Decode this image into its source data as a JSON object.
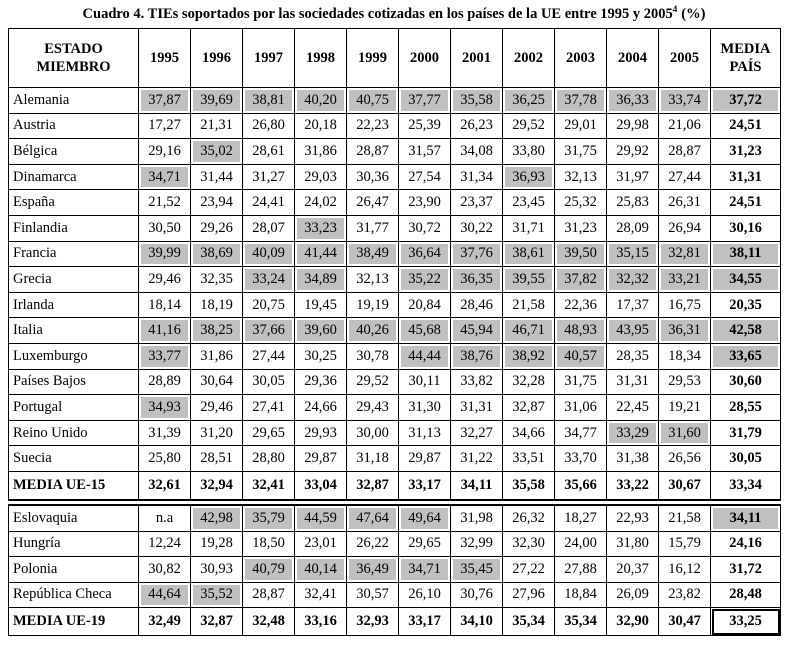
{
  "title": {
    "text": "Cuadro 4. TIEs soportados por las sociedades cotizadas en los países de la UE entre 1995 y 2005",
    "note": "4",
    "unit": "(%)"
  },
  "table": {
    "header": [
      "ESTADO\nMIEMBRO",
      "1995",
      "1996",
      "1997",
      "1998",
      "1999",
      "2000",
      "2001",
      "2002",
      "2003",
      "2004",
      "2005",
      "MEDIA\nPAÍS"
    ],
    "groups": [
      {
        "rows": [
          {
            "name": "Alemania",
            "values": [
              "37,87",
              "39,69",
              "38,81",
              "40,20",
              "40,75",
              "37,77",
              "35,58",
              "36,25",
              "37,78",
              "36,33",
              "33,74",
              "37,72"
            ],
            "shaded": [
              0,
              1,
              2,
              3,
              4,
              5,
              6,
              7,
              8,
              9,
              10,
              11
            ]
          },
          {
            "name": "Austria",
            "values": [
              "17,27",
              "21,31",
              "26,80",
              "20,18",
              "22,23",
              "25,39",
              "26,23",
              "29,52",
              "29,01",
              "29,98",
              "21,06",
              "24,51"
            ],
            "shaded": []
          },
          {
            "name": "Bélgica",
            "values": [
              "29,16",
              "35,02",
              "28,61",
              "31,86",
              "28,87",
              "31,57",
              "34,08",
              "33,80",
              "31,75",
              "29,92",
              "28,87",
              "31,23"
            ],
            "shaded": [
              1
            ]
          },
          {
            "name": "Dinamarca",
            "values": [
              "34,71",
              "31,44",
              "31,27",
              "29,03",
              "30,36",
              "27,54",
              "31,34",
              "36,93",
              "32,13",
              "31,97",
              "27,44",
              "31,31"
            ],
            "shaded": [
              0,
              7
            ]
          },
          {
            "name": "España",
            "values": [
              "21,52",
              "23,94",
              "24,41",
              "24,02",
              "26,47",
              "23,90",
              "23,37",
              "23,45",
              "25,32",
              "25,83",
              "26,31",
              "24,51"
            ],
            "shaded": []
          },
          {
            "name": "Finlandia",
            "values": [
              "30,50",
              "29,26",
              "28,07",
              "33,23",
              "31,77",
              "30,72",
              "30,22",
              "31,71",
              "31,23",
              "28,09",
              "26,94",
              "30,16"
            ],
            "shaded": [
              3
            ]
          },
          {
            "name": "Francia",
            "values": [
              "39,99",
              "38,69",
              "40,09",
              "41,44",
              "38,49",
              "36,64",
              "37,76",
              "38,61",
              "39,50",
              "35,15",
              "32,81",
              "38,11"
            ],
            "shaded": [
              0,
              1,
              2,
              3,
              4,
              5,
              6,
              7,
              8,
              9,
              10,
              11
            ]
          },
          {
            "name": "Grecia",
            "values": [
              "29,46",
              "32,35",
              "33,24",
              "34,89",
              "32,13",
              "35,22",
              "36,35",
              "39,55",
              "37,82",
              "32,32",
              "33,21",
              "34,55"
            ],
            "shaded": [
              2,
              3,
              5,
              6,
              7,
              8,
              9,
              10,
              11
            ]
          },
          {
            "name": "Irlanda",
            "values": [
              "18,14",
              "18,19",
              "20,75",
              "19,45",
              "19,19",
              "20,84",
              "28,46",
              "21,58",
              "22,36",
              "17,37",
              "16,75",
              "20,35"
            ],
            "shaded": []
          },
          {
            "name": "Italia",
            "values": [
              "41,16",
              "38,25",
              "37,66",
              "39,60",
              "40,26",
              "45,68",
              "45,94",
              "46,71",
              "48,93",
              "43,95",
              "36,31",
              "42,58"
            ],
            "shaded": [
              0,
              1,
              2,
              3,
              4,
              5,
              6,
              7,
              8,
              9,
              10,
              11
            ]
          },
          {
            "name": "Luxemburgo",
            "values": [
              "33,77",
              "31,86",
              "27,44",
              "30,25",
              "30,78",
              "44,44",
              "38,76",
              "38,92",
              "40,57",
              "28,35",
              "18,34",
              "33,65"
            ],
            "shaded": [
              0,
              5,
              6,
              7,
              8,
              11
            ]
          },
          {
            "name": "Países Bajos",
            "values": [
              "28,89",
              "30,64",
              "30,05",
              "29,36",
              "29,52",
              "30,11",
              "33,82",
              "32,28",
              "31,75",
              "31,31",
              "29,53",
              "30,60"
            ],
            "shaded": []
          },
          {
            "name": "Portugal",
            "values": [
              "34,93",
              "29,46",
              "27,41",
              "24,66",
              "29,43",
              "31,30",
              "31,31",
              "32,87",
              "31,06",
              "22,45",
              "19,21",
              "28,55"
            ],
            "shaded": [
              0
            ]
          },
          {
            "name": "Reino Unido",
            "values": [
              "31,39",
              "31,20",
              "29,65",
              "29,93",
              "30,00",
              "31,13",
              "32,27",
              "34,66",
              "34,77",
              "33,29",
              "31,60",
              "31,79"
            ],
            "shaded": [
              9,
              10
            ]
          },
          {
            "name": "Suecia",
            "values": [
              "25,80",
              "28,51",
              "28,80",
              "29,87",
              "31,18",
              "29,87",
              "31,22",
              "33,51",
              "33,70",
              "31,38",
              "26,56",
              "30,05"
            ],
            "shaded": []
          }
        ],
        "total": {
          "name": "MEDIA UE-15",
          "values": [
            "32,61",
            "32,94",
            "32,41",
            "33,04",
            "32,87",
            "33,17",
            "34,11",
            "35,58",
            "35,66",
            "33,22",
            "30,67",
            "33,34"
          ]
        }
      },
      {
        "rows": [
          {
            "name": "Eslovaquia",
            "values": [
              "n.a",
              "42,98",
              "35,79",
              "44,59",
              "47,64",
              "49,64",
              "31,98",
              "26,32",
              "18,27",
              "22,93",
              "21,58",
              "34,11"
            ],
            "shaded": [
              1,
              2,
              3,
              4,
              5,
              11
            ]
          },
          {
            "name": "Hungría",
            "values": [
              "12,24",
              "19,28",
              "18,50",
              "23,01",
              "26,22",
              "29,65",
              "32,99",
              "32,30",
              "24,00",
              "31,80",
              "15,79",
              "24,16"
            ],
            "shaded": []
          },
          {
            "name": "Polonia",
            "values": [
              "30,82",
              "30,93",
              "40,79",
              "40,14",
              "36,49",
              "34,71",
              "35,45",
              "27,22",
              "27,88",
              "20,37",
              "16,12",
              "31,72"
            ],
            "shaded": [
              2,
              3,
              4,
              5,
              6
            ]
          },
          {
            "name": "República Checa",
            "values": [
              "44,64",
              "35,52",
              "28,87",
              "32,41",
              "30,57",
              "26,10",
              "30,76",
              "27,96",
              "18,84",
              "26,09",
              "23,82",
              "28,48"
            ],
            "shaded": [
              0,
              1
            ]
          }
        ],
        "total": {
          "name": "MEDIA UE-19",
          "values": [
            "32,49",
            "32,87",
            "32,48",
            "33,16",
            "32,93",
            "33,17",
            "34,10",
            "35,34",
            "35,34",
            "32,90",
            "30,47",
            "33,25"
          ]
        }
      }
    ]
  }
}
